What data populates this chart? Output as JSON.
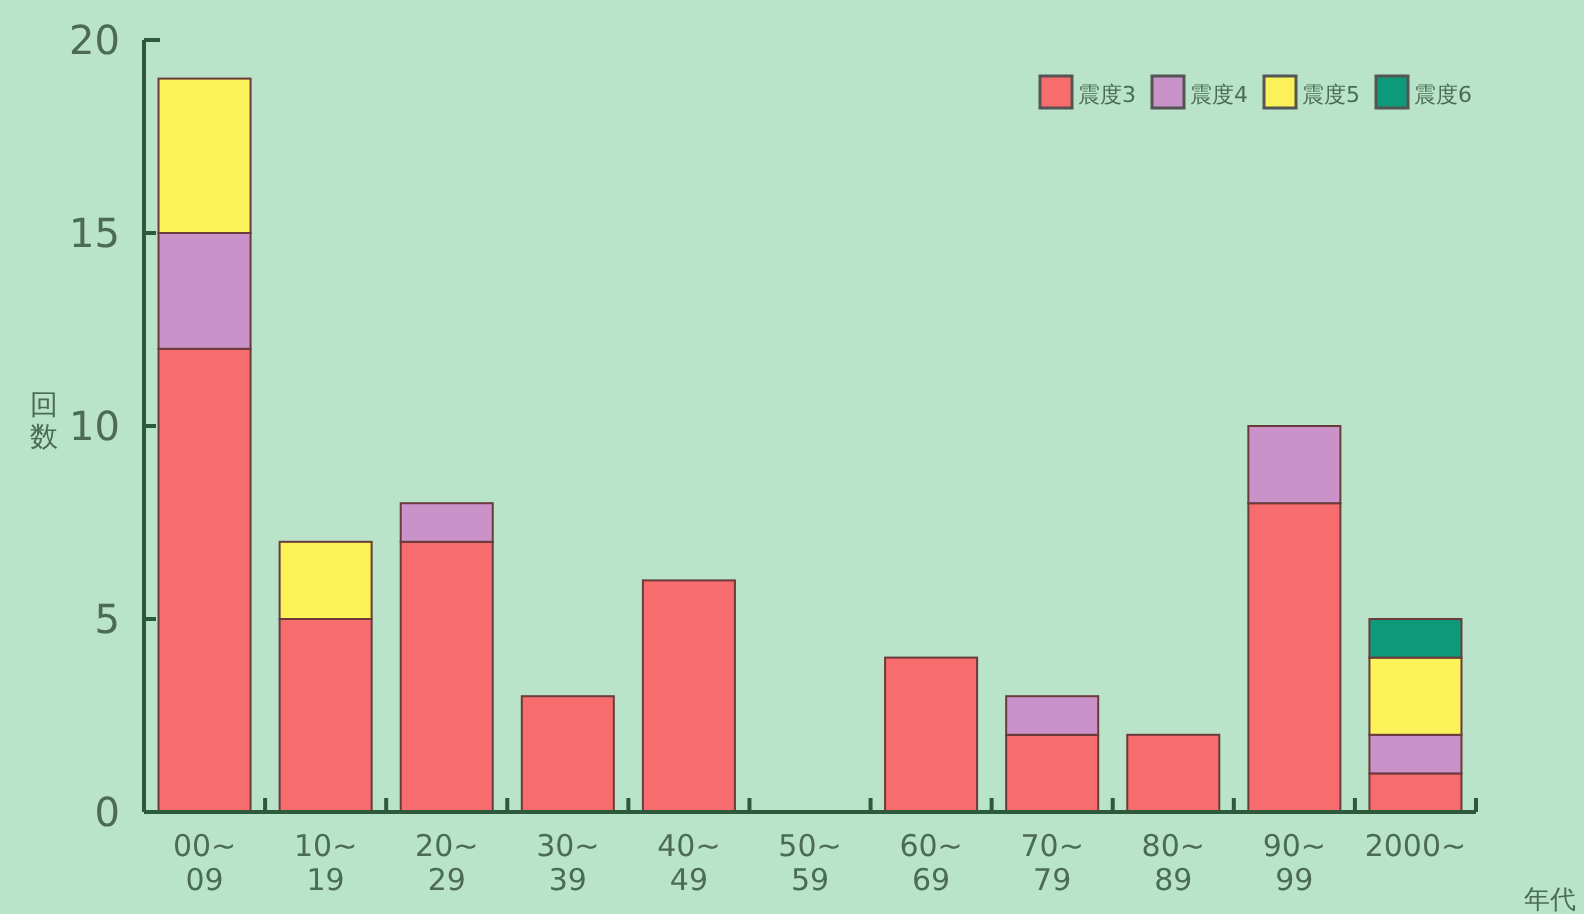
{
  "chart_data": {
    "type": "bar",
    "stacked": true,
    "ylabel": "回数",
    "xlabel": "年代",
    "ylim": [
      0,
      20
    ],
    "yticks": [
      0,
      5,
      10,
      15,
      20
    ],
    "legend": "top right",
    "categories": [
      "00~09",
      "10~19",
      "20~29",
      "30~39",
      "40~49",
      "50~59",
      "60~69",
      "70~79",
      "80~89",
      "90~99",
      "2000~"
    ],
    "series": [
      {
        "name": "震度3",
        "color": "#f76d6d",
        "values": [
          12,
          5,
          7,
          3,
          6,
          0,
          4,
          2,
          2,
          8,
          1
        ]
      },
      {
        "name": "震度4",
        "color": "#c993c9",
        "values": [
          3,
          0,
          1,
          0,
          0,
          0,
          0,
          1,
          0,
          2,
          1
        ]
      },
      {
        "name": "震度5",
        "color": "#fbf25a",
        "values": [
          4,
          2,
          0,
          0,
          0,
          0,
          0,
          0,
          0,
          0,
          2
        ]
      },
      {
        "name": "震度6",
        "color": "#0d9a7a",
        "values": [
          0,
          0,
          0,
          0,
          0,
          0,
          0,
          0,
          0,
          0,
          1
        ]
      }
    ]
  }
}
